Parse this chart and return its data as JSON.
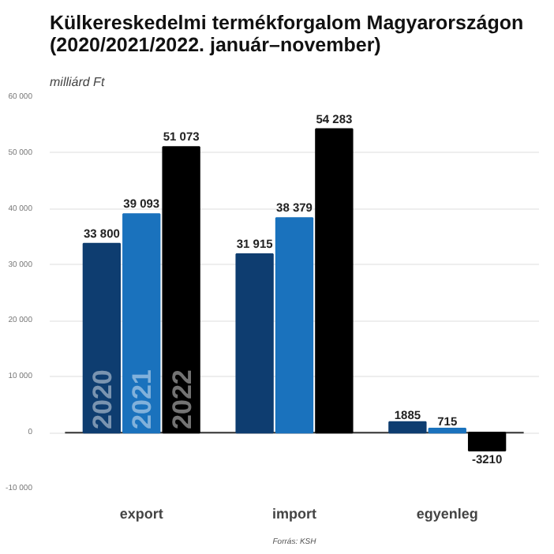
{
  "chart_data": {
    "type": "bar",
    "title": "Külkereskedelmi termékforgalom Magyarországon (2020/2021/2022. január–november)",
    "subtitle": "milliárd Ft",
    "categories": [
      "export",
      "import",
      "egyenleg"
    ],
    "series": [
      {
        "name": "2020",
        "color": "#0e3d70",
        "values": [
          33800,
          31915,
          1885
        ],
        "value_labels": [
          "33 800",
          "31 915",
          "1885"
        ]
      },
      {
        "name": "2021",
        "color": "#1a72bd",
        "values": [
          39093,
          38379,
          715
        ],
        "value_labels": [
          "39 093",
          "38 379",
          "715"
        ]
      },
      {
        "name": "2022",
        "color": "#000000",
        "values": [
          51073,
          54283,
          -3210
        ],
        "value_labels": [
          "51 073",
          "54 283",
          "-3210"
        ]
      }
    ],
    "ylim": [
      -10000,
      60000
    ],
    "yticks": [
      {
        "value": -10000,
        "label": "-10 000"
      },
      {
        "value": 0,
        "label": "0"
      },
      {
        "value": 10000,
        "label": "10 000"
      },
      {
        "value": 20000,
        "label": "20 000"
      },
      {
        "value": 30000,
        "label": "30 000"
      },
      {
        "value": 40000,
        "label": "40 000"
      },
      {
        "value": 50000,
        "label": "50 000"
      },
      {
        "value": 60000,
        "label": "60 000"
      }
    ],
    "grid": "y",
    "legend": false,
    "annotations": [
      "Forrás: KSH"
    ]
  }
}
